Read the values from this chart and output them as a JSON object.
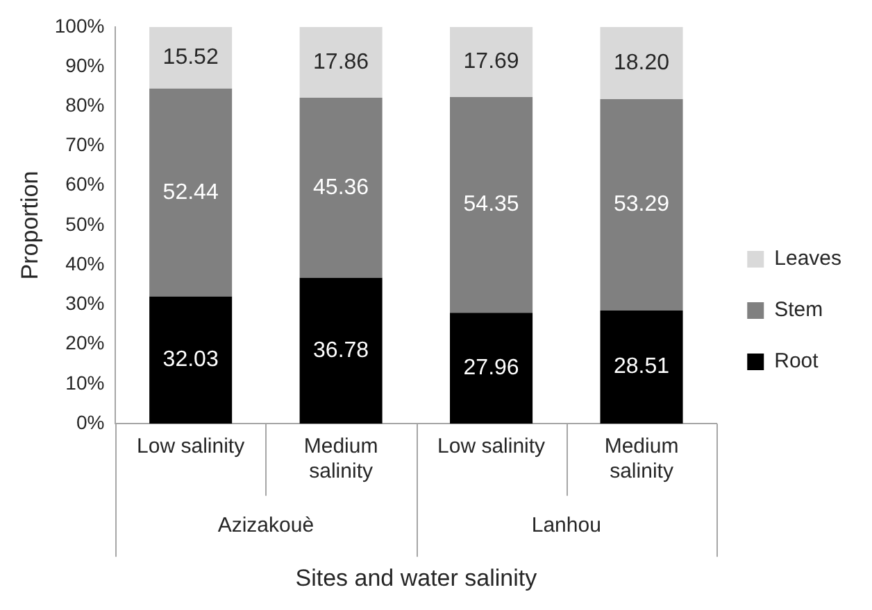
{
  "chart_data": {
    "type": "bar",
    "stacked": true,
    "ylabel": "Proportion",
    "xlabel": "Sites and water salinity",
    "categories": [
      "Low salinity",
      "Medium salinity",
      "Low salinity",
      "Medium salinity"
    ],
    "annotations": [
      "Azizakouè",
      "Lanhou"
    ],
    "series": [
      {
        "name": "Root",
        "color": "#000000",
        "values": [
          32.03,
          36.78,
          27.96,
          28.51
        ],
        "value_labels": [
          "32.03",
          "36.78",
          "27.96",
          "28.51"
        ]
      },
      {
        "name": "Stem",
        "color": "#808080",
        "values": [
          52.44,
          45.36,
          54.35,
          53.29
        ],
        "value_labels": [
          "52.44",
          "45.36",
          "54.35",
          "53.29"
        ]
      },
      {
        "name": "Leaves",
        "color": "#d9d9d9",
        "values": [
          15.52,
          17.86,
          17.69,
          18.2
        ],
        "value_labels": [
          "15.52",
          "17.86",
          "17.69",
          "18.20"
        ]
      }
    ],
    "ylim": [
      0,
      100
    ],
    "yticks": [
      {
        "value": 0,
        "label": "0%"
      },
      {
        "value": 10,
        "label": "10%"
      },
      {
        "value": 20,
        "label": "20%"
      },
      {
        "value": 30,
        "label": "30%"
      },
      {
        "value": 40,
        "label": "40%"
      },
      {
        "value": 50,
        "label": "50%"
      },
      {
        "value": 60,
        "label": "60%"
      },
      {
        "value": 70,
        "label": "70%"
      },
      {
        "value": 80,
        "label": "80%"
      },
      {
        "value": 90,
        "label": "90%"
      },
      {
        "value": 100,
        "label": "100%"
      }
    ],
    "grid": false,
    "legend": "right"
  }
}
